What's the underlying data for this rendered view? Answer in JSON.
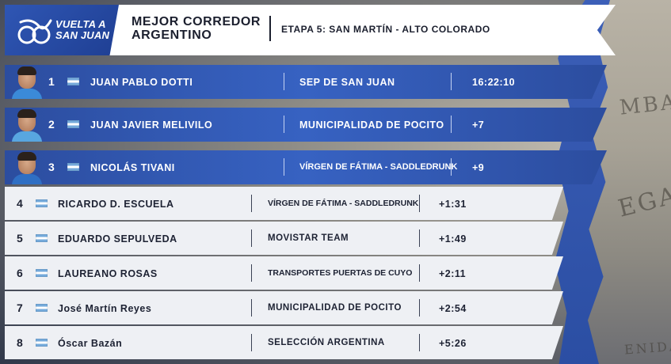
{
  "brand": {
    "logo_line1": "VUELTA A",
    "logo_line2": "SAN JUAN"
  },
  "header": {
    "title_line1": "MEJOR CORREDOR",
    "title_line2": "ARGENTINO",
    "stage": "ETAPA 5: SAN MARTÍN - ALTO COLORADO"
  },
  "colors": {
    "accent_blue": "#3762c2",
    "row_light": "#eef0f4",
    "flag_blue": "#75aadb"
  },
  "standings": [
    {
      "pos": "1",
      "flag": "argentina-flag-icon",
      "name": "JUAN PABLO DOTTI",
      "team": "SEP DE SAN JUAN",
      "time": "16:22:10"
    },
    {
      "pos": "2",
      "flag": "argentina-flag-icon",
      "name": "JUAN JAVIER MELIVILO",
      "team": "MUNICIPALIDAD DE POCITO",
      "time": "+7"
    },
    {
      "pos": "3",
      "flag": "argentina-flag-icon",
      "name": "NICOLÁS TIVANI",
      "team": "VÍRGEN DE FÁTIMA - SADDLEDRUNK",
      "time": "+9"
    },
    {
      "pos": "4",
      "flag": "argentina-flag-icon",
      "name": "RICARDO D. ESCUELA",
      "team": "VÍRGEN DE FÁTIMA - SADDLEDRUNK",
      "time": "+1:31"
    },
    {
      "pos": "5",
      "flag": "argentina-flag-icon",
      "name": "EDUARDO SEPULVEDA",
      "team": "MOVISTAR TEAM",
      "time": "+1:49"
    },
    {
      "pos": "6",
      "flag": "argentina-flag-icon",
      "name": "LAUREANO ROSAS",
      "team": "TRANSPORTES PUERTAS DE CUYO",
      "time": "+2:11"
    },
    {
      "pos": "7",
      "flag": "argentina-flag-icon",
      "name": "José Martín Reyes",
      "team": "MUNICIPALIDAD DE POCITO",
      "time": "+2:54"
    },
    {
      "pos": "8",
      "flag": "argentina-flag-icon",
      "name": "Óscar Bazán",
      "team": "SELECCIÓN ARGENTINA",
      "time": "+5:26"
    }
  ],
  "background_map": {
    "text1": "MBA",
    "text2": "EGA",
    "text3": "ENIDA"
  }
}
